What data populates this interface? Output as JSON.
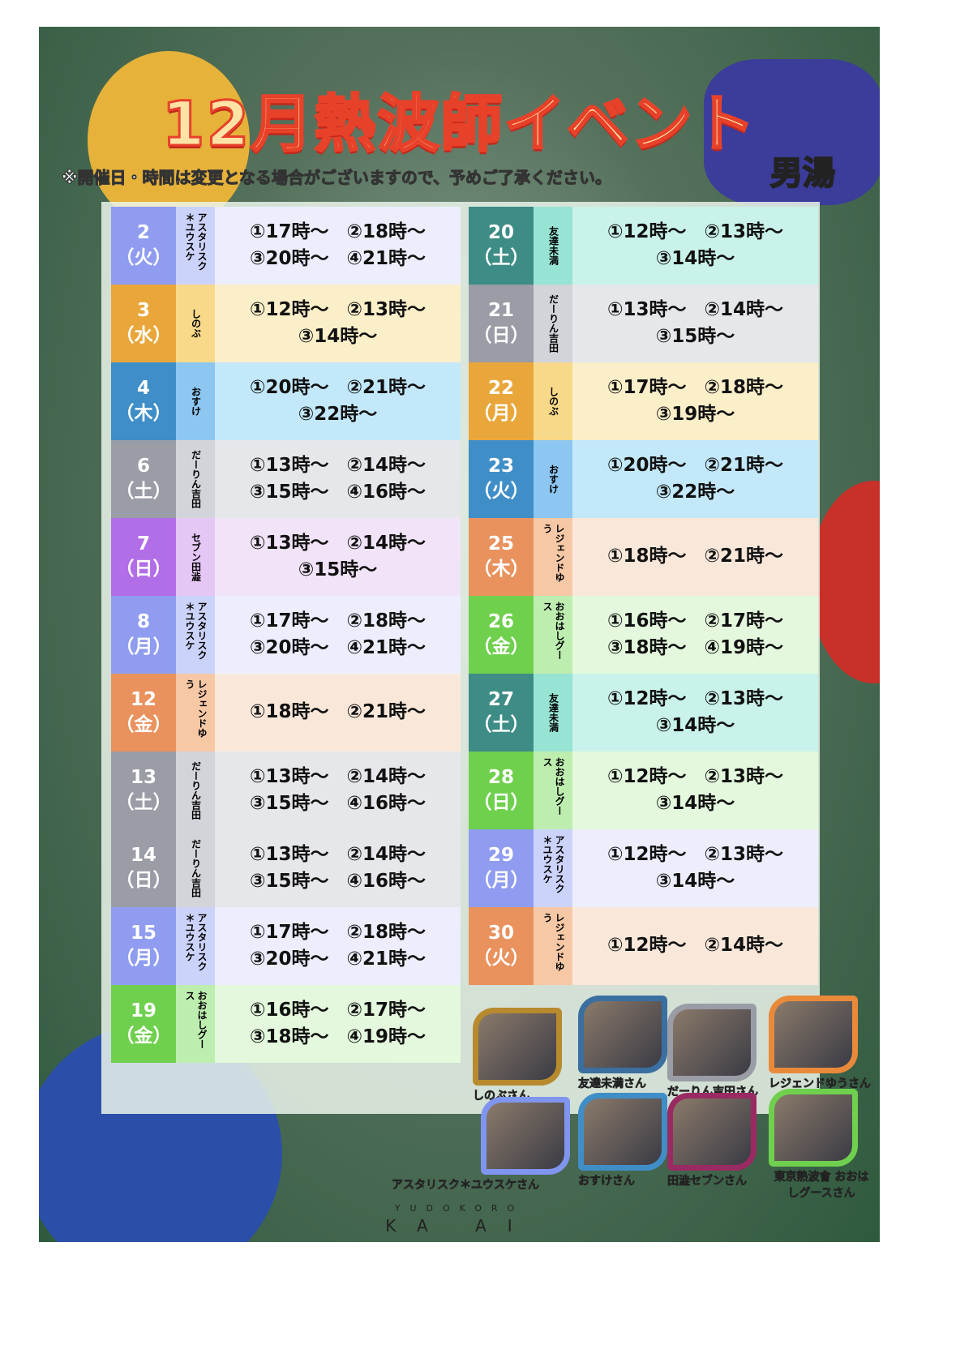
{
  "title": "12月熱波師イベント",
  "note": "※開催日・時間は変更となる場合がございますので、予めご了承ください。",
  "bath": "男湯",
  "colors": {
    "asterisk": [
      "#8f9cf0",
      "#ccd3fa",
      "#eceefd"
    ],
    "shinobu": [
      "#e9a73b",
      "#f8d98a",
      "#fbefc9"
    ],
    "osuke": [
      "#3f8ec7",
      "#8cc6f1",
      "#c2e8fa"
    ],
    "darin": [
      "#9a9ca6",
      "#d3d4da",
      "#e6e7ea"
    ],
    "seven": [
      "#b26ee6",
      "#e5c7f5",
      "#f1e3f8"
    ],
    "legend": [
      "#e9925e",
      "#f6c8a6",
      "#f9e8da"
    ],
    "tomodachi": [
      "#3d8c86",
      "#98e4d4",
      "#c9f2ea"
    ],
    "ohashi": [
      "#6fd04e",
      "#bdeeb0",
      "#e3f8dd"
    ]
  },
  "schedule_left": [
    {
      "day": "2",
      "dow": "（火）",
      "name": "アスタリスク＊ユウスケ",
      "c": "asterisk",
      "l1": "①17時～ ②18時～",
      "l2": "③20時～ ④21時～"
    },
    {
      "day": "3",
      "dow": "（水）",
      "name": "しのぶ",
      "c": "shinobu",
      "l1": "①12時～ ②13時～",
      "l2": "③14時～"
    },
    {
      "day": "4",
      "dow": "（木）",
      "name": "おすけ",
      "c": "osuke",
      "l1": "①20時～ ②21時～",
      "l2": "③22時～"
    },
    {
      "day": "6",
      "dow": "（土）",
      "name": "だーりん吉田",
      "c": "darin",
      "l1": "①13時～ ②14時～",
      "l2": "③15時～ ④16時～"
    },
    {
      "day": "7",
      "dow": "（日）",
      "name": "セブン田澁",
      "c": "seven",
      "l1": "①13時～ ②14時～",
      "l2": "③15時～"
    },
    {
      "day": "8",
      "dow": "（月）",
      "name": "アスタリスク＊ユウスケ",
      "c": "asterisk",
      "l1": "①17時～ ②18時～",
      "l2": "③20時～ ④21時～"
    },
    {
      "day": "12",
      "dow": "（金）",
      "name": "レジェンドゆう",
      "c": "legend",
      "l1": "①18時～ ②21時～",
      "l2": ""
    },
    {
      "day": "13",
      "dow": "（土）",
      "name": "だーりん吉田",
      "c": "darin",
      "l1": "①13時～ ②14時～",
      "l2": "③15時～ ④16時～"
    },
    {
      "day": "14",
      "dow": "（日）",
      "name": "だーりん吉田",
      "c": "darin",
      "l1": "①13時～ ②14時～",
      "l2": "③15時～ ④16時～"
    },
    {
      "day": "15",
      "dow": "（月）",
      "name": "アスタリスク＊ユウスケ",
      "c": "asterisk",
      "l1": "①17時～ ②18時～",
      "l2": "③20時～ ④21時～"
    },
    {
      "day": "19",
      "dow": "（金）",
      "name": "おおはしグース",
      "c": "ohashi",
      "l1": "①16時～ ②17時～",
      "l2": "③18時～ ④19時～"
    }
  ],
  "schedule_right": [
    {
      "day": "20",
      "dow": "（土）",
      "name": "友達未満",
      "c": "tomodachi",
      "l1": "①12時～ ②13時～",
      "l2": "③14時～"
    },
    {
      "day": "21",
      "dow": "（日）",
      "name": "だーりん吉田",
      "c": "darin",
      "l1": "①13時～ ②14時～",
      "l2": "③15時～"
    },
    {
      "day": "22",
      "dow": "（月）",
      "name": "しのぶ",
      "c": "shinobu",
      "l1": "①17時～ ②18時～",
      "l2": "③19時～"
    },
    {
      "day": "23",
      "dow": "（火）",
      "name": "おすけ",
      "c": "osuke",
      "l1": "①20時～ ②21時～",
      "l2": "③22時～"
    },
    {
      "day": "25",
      "dow": "（木）",
      "name": "レジェンドゆう",
      "c": "legend",
      "l1": "①18時～ ②21時～",
      "l2": ""
    },
    {
      "day": "26",
      "dow": "（金）",
      "name": "おおはしグース",
      "c": "ohashi",
      "l1": "①16時～ ②17時～",
      "l2": "③18時～ ④19時～"
    },
    {
      "day": "27",
      "dow": "（土）",
      "name": "友達未満",
      "c": "tomodachi",
      "l1": "①12時～ ②13時～",
      "l2": "③14時～"
    },
    {
      "day": "28",
      "dow": "（日）",
      "name": "おおはしグース",
      "c": "ohashi",
      "l1": "①12時～ ②13時～",
      "l2": "③14時～"
    },
    {
      "day": "29",
      "dow": "（月）",
      "name": "アスタリスク＊ユウスケ",
      "c": "asterisk",
      "l1": "①12時～ ②13時～",
      "l2": "③14時～"
    },
    {
      "day": "30",
      "dow": "（火）",
      "name": "レジェンドゆう",
      "c": "legend",
      "l1": "①12時～ ②14時～",
      "l2": ""
    }
  ],
  "photos": [
    {
      "caption": "しのぶさん",
      "c": "#b88a2e"
    },
    {
      "caption": "友達未満さん",
      "c": "#3a6fa0"
    },
    {
      "caption": "だーりん吉田さん",
      "c": "#9a9ca6"
    },
    {
      "caption": "レジェンドゆうさん",
      "c": "#e98a3a"
    },
    {
      "caption": "アスタリスク＊ユウスケさん",
      "c": "#7f95f0"
    },
    {
      "caption": "おすけさん",
      "c": "#3f8ec7"
    },
    {
      "caption": "田澁セブンさん",
      "c": "#9a2a62"
    },
    {
      "caption": "東京熱波會 おおはしグースさん",
      "c": "#6fd04e"
    }
  ],
  "logo": {
    "top": "YUDOKORO",
    "bottom": "KA AI"
  }
}
